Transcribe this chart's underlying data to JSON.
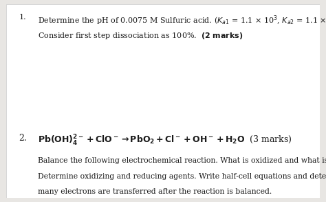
{
  "background_color": "#e8e6e3",
  "page_background": "#ffffff",
  "text_color": "#1a1a1a",
  "q1_number": "1.",
  "q1_line2": "Consider first step dissociation as 100%.  (2 marks)",
  "q2_number": "2.",
  "q2_body_line1": "Balance the following electrochemical reaction. What is oxidized and what is reduced?",
  "q2_body_line2": "Determine oxidizing and reducing agents. Write half-cell equations and determine how",
  "q2_body_line3": "many electrons are transferred after the reaction is balanced.",
  "font_size_main": 8.0,
  "font_size_equation": 9.0,
  "font_size_body": 7.8
}
